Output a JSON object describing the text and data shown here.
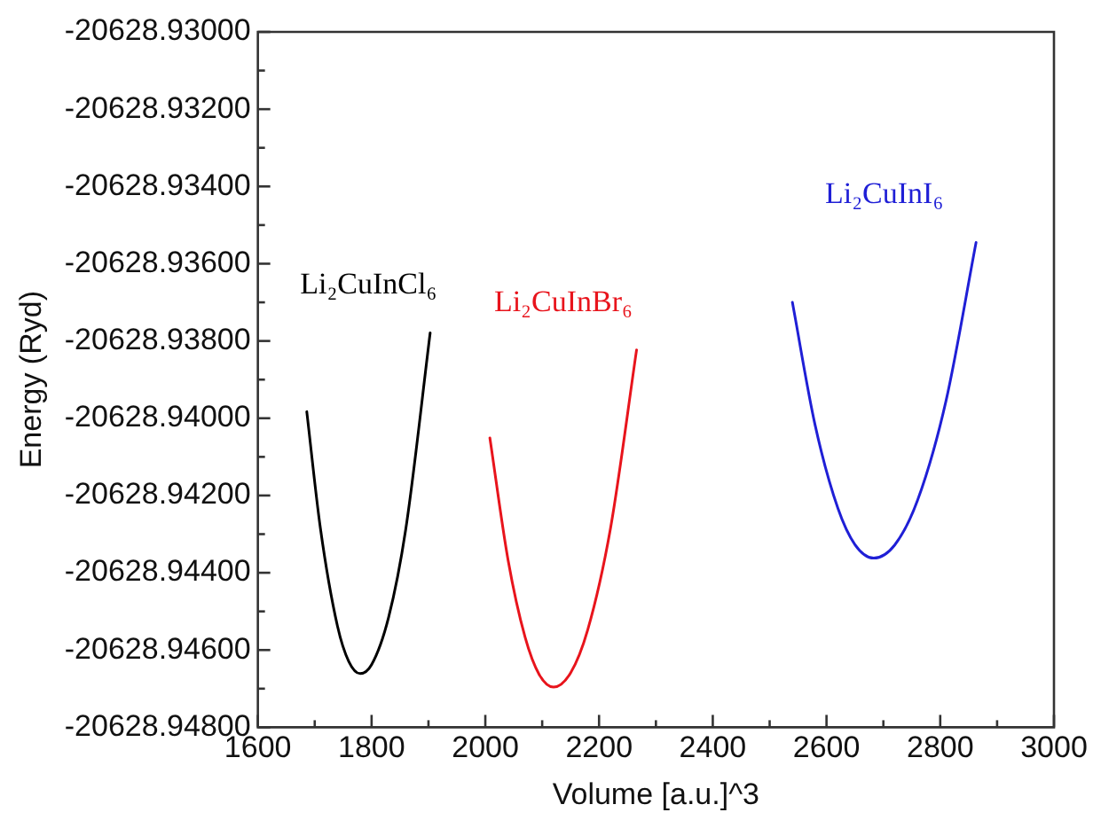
{
  "chart_data": {
    "type": "line",
    "xlabel": "Volume [a.u.]^3",
    "ylabel": "Energy (Ryd)",
    "xlim": [
      1600,
      3000
    ],
    "xticks": [
      1600,
      1800,
      2000,
      2200,
      2400,
      2600,
      2800,
      3000
    ],
    "ylim": [
      -20628.948,
      -20628.93
    ],
    "yticks": [
      {
        "value": -20628.948,
        "label": "-20628.94800"
      },
      {
        "value": -20628.946,
        "label": "-20628.94600"
      },
      {
        "value": -20628.944,
        "label": "-20628.94400"
      },
      {
        "value": -20628.942,
        "label": "-20628.94200"
      },
      {
        "value": -20628.94,
        "label": "-20628.94000"
      },
      {
        "value": -20628.938,
        "label": "-20628.93800"
      },
      {
        "value": -20628.936,
        "label": "-20628.93600"
      },
      {
        "value": -20628.934,
        "label": "-20628.93400"
      },
      {
        "value": -20628.932,
        "label": "-20628.93200"
      },
      {
        "value": -20628.93,
        "label": "-20628.93000"
      }
    ],
    "grid": false,
    "legend": false,
    "marker": "none",
    "line_style": "solid",
    "series": [
      {
        "name": "Li₂CuInCl₆",
        "color": "#000000",
        "x": [
          1686,
          1710,
          1740,
          1760,
          1780,
          1800,
          1830,
          1860,
          1903
        ],
        "values": [
          -20628.93983,
          -20628.94285,
          -20628.94538,
          -20628.9463,
          -20628.94661,
          -20628.94638,
          -20628.94515,
          -20628.94288,
          -20628.93779
        ]
      },
      {
        "name": "Li₂CuInBr₆",
        "color": "#e8141c",
        "x": [
          2008,
          2040,
          2070,
          2095,
          2120,
          2150,
          2180,
          2220,
          2266
        ],
        "values": [
          -20628.94051,
          -20628.94367,
          -20628.94567,
          -20628.94664,
          -20628.94696,
          -20628.94659,
          -20628.94548,
          -20628.94286,
          -20628.93823
        ]
      },
      {
        "name": "Li₂CuInI₆",
        "color": "#1f1fd6",
        "x": [
          2540,
          2580,
          2620,
          2650,
          2683,
          2720,
          2760,
          2810,
          2863
        ],
        "values": [
          -20628.937,
          -20628.94018,
          -20628.94233,
          -20628.94327,
          -20628.94362,
          -20628.94328,
          -20628.94213,
          -20628.93956,
          -20628.93545
        ]
      }
    ]
  }
}
